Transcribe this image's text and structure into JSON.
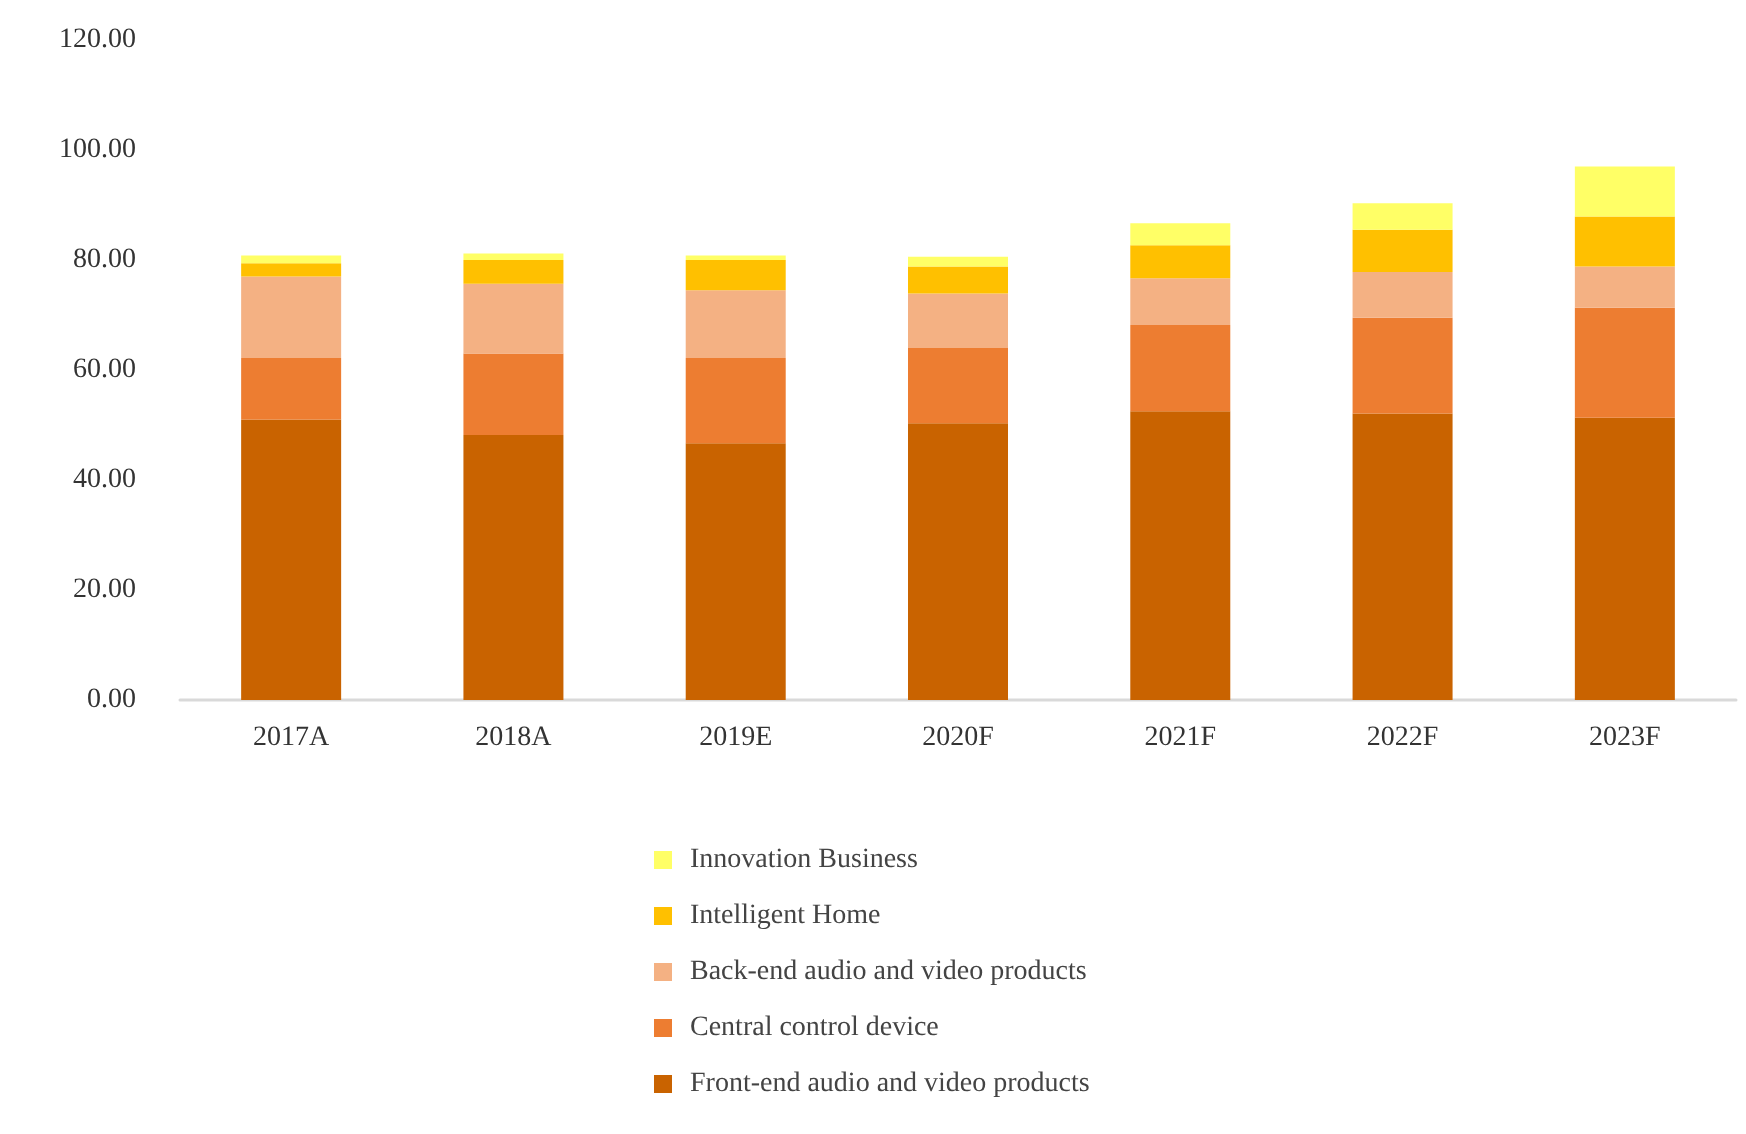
{
  "chart_data": {
    "type": "bar",
    "stacked": true,
    "categories": [
      "2017A",
      "2018A",
      "2019E",
      "2020F",
      "2021F",
      "2022F",
      "2023F"
    ],
    "series": [
      {
        "name": "Front-end audio and video products",
        "color": "#c96300",
        "values": [
          51,
          48.2,
          46.7,
          50.3,
          52.5,
          52.1,
          51.3
        ]
      },
      {
        "name": "Central control device",
        "color": "#ed7d31",
        "values": [
          11.2,
          14.8,
          15.5,
          13.7,
          15.7,
          17.4,
          20
        ]
      },
      {
        "name": "Back-end audio and video products",
        "color": "#f4b183",
        "values": [
          14.8,
          12.7,
          12.3,
          9.9,
          8.5,
          8.3,
          7.5
        ]
      },
      {
        "name": "Intelligent Home",
        "color": "#ffc000",
        "values": [
          2.4,
          4.3,
          5.5,
          4.9,
          6,
          7.7,
          9.1
        ]
      },
      {
        "name": "Innovation Business",
        "color": "#ffff66",
        "values": [
          1.4,
          1.2,
          0.8,
          1.8,
          4,
          4.8,
          9.1
        ]
      }
    ],
    "ylim": [
      0,
      120
    ],
    "yticks": [
      {
        "value": 0,
        "label": "0.00"
      },
      {
        "value": 20,
        "label": "20.00"
      },
      {
        "value": 40,
        "label": "40.00"
      },
      {
        "value": 60,
        "label": "60.00"
      },
      {
        "value": 80,
        "label": "80.00"
      },
      {
        "value": 100,
        "label": "100.00"
      },
      {
        "value": 120,
        "label": "120.00"
      }
    ],
    "grid": false,
    "legend": "bottom"
  }
}
